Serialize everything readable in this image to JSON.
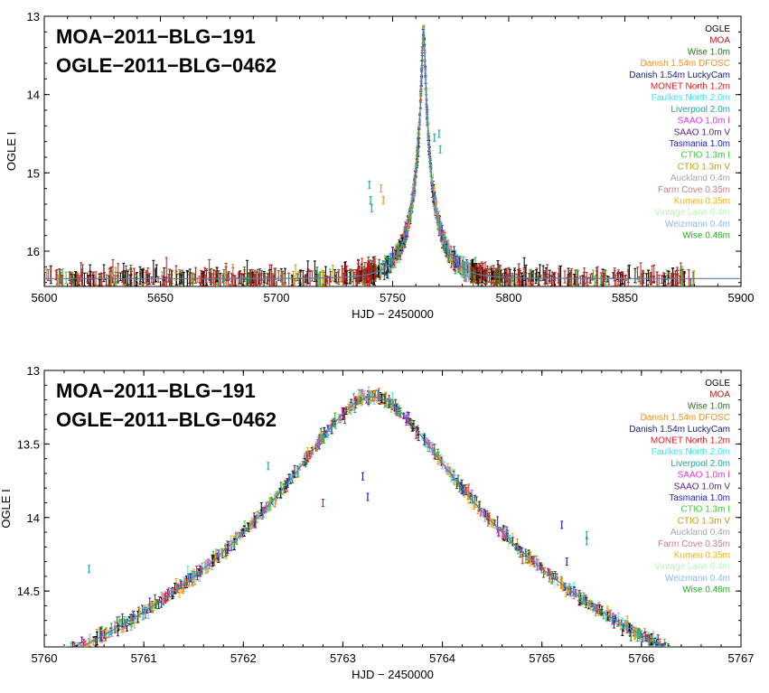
{
  "chart_data": [
    {
      "type": "scatter",
      "title_lines": [
        "MOA−2011−BLG−191",
        "OGLE−2011−BLG−0462"
      ],
      "xlabel": "HJD − 2450000",
      "ylabel": "OGLE I",
      "xlim": [
        5600,
        5900
      ],
      "ylim": [
        16.45,
        13.0
      ],
      "y_inverted": true,
      "xticks": [
        5600,
        5650,
        5700,
        5750,
        5800,
        5850,
        5900
      ],
      "xtick_labels": [
        "5600",
        "5650",
        "5700",
        "5750",
        "5800",
        "5850",
        "5900"
      ],
      "yticks": [
        13,
        14,
        15,
        16
      ],
      "ytick_labels": [
        "13",
        "14",
        "15",
        "16"
      ],
      "model": {
        "t0": 5763.3,
        "baseline": 16.35,
        "peak": 13.18,
        "tE": 11.2,
        "u0": 0.055
      },
      "legend_position": "top-right"
    },
    {
      "type": "scatter",
      "title_lines": [
        "MOA−2011−BLG−191",
        "OGLE−2011−BLG−0462"
      ],
      "xlabel": "HJD − 2450000",
      "ylabel": "OGLE I",
      "xlim": [
        5760,
        5767
      ],
      "ylim": [
        14.88,
        13.0
      ],
      "y_inverted": true,
      "xticks": [
        5760,
        5761,
        5762,
        5763,
        5764,
        5765,
        5766,
        5767
      ],
      "xtick_labels": [
        "5760",
        "5761",
        "5762",
        "5763",
        "5764",
        "5765",
        "5766",
        "5767"
      ],
      "yticks": [
        13,
        13.5,
        14,
        14.5
      ],
      "ytick_labels": [
        "13",
        "13.5",
        "14",
        "14.5"
      ],
      "model": {
        "t0": 5763.3,
        "baseline": 16.35,
        "peak": 13.18,
        "tE": 11.2,
        "u0": 0.055
      },
      "legend_position": "top-right"
    }
  ],
  "legend": [
    {
      "name": "OGLE",
      "color": "#000000"
    },
    {
      "name": "MOA",
      "color": "#b22222"
    },
    {
      "name": "Wise 1.0m",
      "color": "#2e6b1f"
    },
    {
      "name": "Danish 1.54m DFOSC",
      "color": "#ff8c1a"
    },
    {
      "name": "Danish 1.54m LuckyCam",
      "color": "#1a237e"
    },
    {
      "name": "MONET North 1.2m",
      "color": "#e41a1c"
    },
    {
      "name": "Faulkes North 2.0m",
      "color": "#33e6f2"
    },
    {
      "name": "Liverpool 2.0m",
      "color": "#1fa5a5"
    },
    {
      "name": "SAAO 1.0m I",
      "color": "#e233e2"
    },
    {
      "name": "SAAO 1.0m V",
      "color": "#5a1a8c"
    },
    {
      "name": "Tasmania 1.0m",
      "color": "#2020d0"
    },
    {
      "name": "CTIO 1.3m I",
      "color": "#33cc33"
    },
    {
      "name": "CTIO 1.3m V",
      "color": "#b8a010"
    },
    {
      "name": "Auckland 0.4m",
      "color": "#a8a8a8"
    },
    {
      "name": "Farm Cove 0.35m",
      "color": "#c08080"
    },
    {
      "name": "Kumeu 0.35m",
      "color": "#f2b200"
    },
    {
      "name": "Vintage Lane 0.4m",
      "color": "#b8f2b8"
    },
    {
      "name": "Weizmann 0.4m",
      "color": "#8cb8f2"
    },
    {
      "name": "Wise 0.46m",
      "color": "#20b020"
    }
  ],
  "colors": {
    "model_curve": "#5b7fa8",
    "frame": "#000000"
  }
}
